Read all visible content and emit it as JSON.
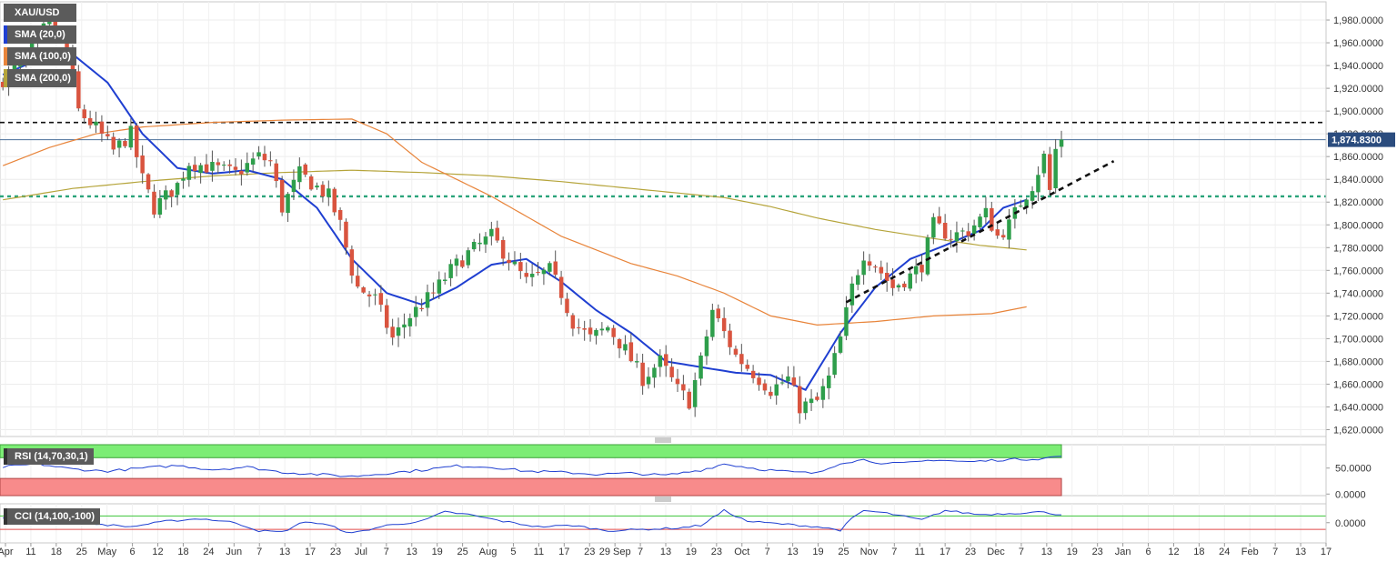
{
  "chart_data": {
    "type": "candlestick",
    "symbol": "XAU/USD",
    "legend": [
      {
        "label": "XAU/USD",
        "color": "#5b5b5b"
      },
      {
        "label": "SMA (20,0)",
        "color": "#1f3fd1"
      },
      {
        "label": "SMA (100,0)",
        "color": "#e8843a"
      },
      {
        "label": "SMA (200,0)",
        "color": "#b5a43a"
      }
    ],
    "last_price": "1,874.8300",
    "ylim": [
      1614,
      1996
    ],
    "y_ticks": [
      "1,620.0000",
      "1,640.0000",
      "1,660.0000",
      "1,680.0000",
      "1,700.0000",
      "1,720.0000",
      "1,740.0000",
      "1,760.0000",
      "1,780.0000",
      "1,800.0000",
      "1,820.0000",
      "1,840.0000",
      "1,860.0000",
      "1,880.0000",
      "1,900.0000",
      "1,920.0000",
      "1,940.0000",
      "1,960.0000",
      "1,980.0000"
    ],
    "y_tick_values": [
      1620,
      1640,
      1660,
      1680,
      1700,
      1720,
      1740,
      1760,
      1780,
      1800,
      1820,
      1840,
      1860,
      1880,
      1900,
      1920,
      1940,
      1960,
      1980
    ],
    "x_labels": [
      "Apr",
      "11",
      "18",
      "25",
      "May",
      "6",
      "12",
      "18",
      "24",
      "Jun",
      "7",
      "13",
      "17",
      "23",
      "Jul",
      "7",
      "13",
      "19",
      "25",
      "Aug",
      "5",
      "11",
      "17",
      "23",
      "29 Sep",
      "7",
      "13",
      "19",
      "23",
      "Oct",
      "7",
      "13",
      "19",
      "25",
      "Nov",
      "7",
      "11",
      "17",
      "23",
      "Dec",
      "7",
      "13",
      "19",
      "23",
      "Jan",
      "6",
      "12",
      "18",
      "24",
      "Feb",
      "7",
      "13",
      "17"
    ],
    "resistance_level": 1890,
    "support_level": 1825,
    "trendline": {
      "from_index": 145,
      "from_price": 1732,
      "to_index": 191,
      "to_price": 1856
    },
    "sma20_anchors": [
      [
        0,
        1932
      ],
      [
        6,
        1945
      ],
      [
        12,
        1950
      ],
      [
        18,
        1925
      ],
      [
        24,
        1880
      ],
      [
        30,
        1850
      ],
      [
        36,
        1845
      ],
      [
        42,
        1848
      ],
      [
        48,
        1840
      ],
      [
        54,
        1815
      ],
      [
        60,
        1770
      ],
      [
        66,
        1740
      ],
      [
        72,
        1730
      ],
      [
        78,
        1745
      ],
      [
        84,
        1765
      ],
      [
        90,
        1770
      ],
      [
        96,
        1750
      ],
      [
        102,
        1725
      ],
      [
        108,
        1705
      ],
      [
        114,
        1680
      ],
      [
        120,
        1675
      ],
      [
        126,
        1670
      ],
      [
        132,
        1668
      ],
      [
        138,
        1655
      ],
      [
        144,
        1705
      ],
      [
        150,
        1745
      ],
      [
        156,
        1770
      ],
      [
        162,
        1782
      ],
      [
        168,
        1795
      ],
      [
        172,
        1815
      ],
      [
        176,
        1822
      ]
    ],
    "sma100_anchors": [
      [
        0,
        1852
      ],
      [
        8,
        1868
      ],
      [
        16,
        1880
      ],
      [
        24,
        1886
      ],
      [
        36,
        1890
      ],
      [
        48,
        1892
      ],
      [
        60,
        1893
      ],
      [
        66,
        1880
      ],
      [
        72,
        1855
      ],
      [
        84,
        1825
      ],
      [
        96,
        1790
      ],
      [
        108,
        1766
      ],
      [
        116,
        1755
      ],
      [
        124,
        1740
      ],
      [
        132,
        1720
      ],
      [
        140,
        1712
      ],
      [
        150,
        1715
      ],
      [
        160,
        1720
      ],
      [
        170,
        1722
      ],
      [
        176,
        1728
      ]
    ],
    "sma200_anchors": [
      [
        0,
        1822
      ],
      [
        12,
        1832
      ],
      [
        24,
        1838
      ],
      [
        36,
        1843
      ],
      [
        48,
        1846
      ],
      [
        60,
        1848
      ],
      [
        72,
        1846
      ],
      [
        84,
        1843
      ],
      [
        96,
        1838
      ],
      [
        108,
        1832
      ],
      [
        118,
        1827
      ],
      [
        124,
        1824
      ],
      [
        132,
        1816
      ],
      [
        140,
        1806
      ],
      [
        150,
        1796
      ],
      [
        160,
        1788
      ],
      [
        168,
        1782
      ],
      [
        176,
        1778
      ]
    ],
    "close_path": [
      [
        0,
        1928
      ],
      [
        4,
        1945
      ],
      [
        8,
        1980
      ],
      [
        11,
        1955
      ],
      [
        13,
        1900
      ],
      [
        16,
        1885
      ],
      [
        19,
        1865
      ],
      [
        22,
        1880
      ],
      [
        24,
        1840
      ],
      [
        26,
        1815
      ],
      [
        30,
        1835
      ],
      [
        32,
        1855
      ],
      [
        36,
        1850
      ],
      [
        40,
        1845
      ],
      [
        44,
        1860
      ],
      [
        46,
        1855
      ],
      [
        48,
        1815
      ],
      [
        51,
        1845
      ],
      [
        56,
        1825
      ],
      [
        58,
        1800
      ],
      [
        60,
        1760
      ],
      [
        61,
        1745
      ],
      [
        64,
        1735
      ],
      [
        67,
        1700
      ],
      [
        70,
        1720
      ],
      [
        74,
        1740
      ],
      [
        77,
        1760
      ],
      [
        80,
        1775
      ],
      [
        84,
        1790
      ],
      [
        87,
        1770
      ],
      [
        90,
        1750
      ],
      [
        94,
        1760
      ],
      [
        96,
        1740
      ],
      [
        98,
        1715
      ],
      [
        101,
        1700
      ],
      [
        104,
        1710
      ],
      [
        107,
        1690
      ],
      [
        110,
        1665
      ],
      [
        113,
        1680
      ],
      [
        116,
        1655
      ],
      [
        118,
        1645
      ],
      [
        120,
        1680
      ],
      [
        122,
        1725
      ],
      [
        124,
        1705
      ],
      [
        126,
        1685
      ],
      [
        129,
        1670
      ],
      [
        132,
        1655
      ],
      [
        135,
        1665
      ],
      [
        137,
        1640
      ],
      [
        140,
        1645
      ],
      [
        142,
        1665
      ],
      [
        144,
        1700
      ],
      [
        146,
        1745
      ],
      [
        148,
        1775
      ],
      [
        150,
        1765
      ],
      [
        153,
        1745
      ],
      [
        156,
        1755
      ],
      [
        158,
        1765
      ],
      [
        160,
        1800
      ],
      [
        163,
        1790
      ],
      [
        166,
        1795
      ],
      [
        169,
        1810
      ],
      [
        171,
        1790
      ],
      [
        173,
        1800
      ],
      [
        175,
        1820
      ],
      [
        177,
        1835
      ],
      [
        179,
        1860
      ],
      [
        180,
        1830
      ],
      [
        181,
        1866
      ],
      [
        182,
        1875
      ]
    ],
    "rsi": {
      "label": "RSI (14,70,30,1)",
      "ylim": [
        -3,
        95
      ],
      "overbought": 70,
      "oversold": 30,
      "tick_labels": [
        "50.0000",
        "0.0000"
      ],
      "tick_values": [
        50,
        0
      ],
      "anchors": [
        [
          0,
          52
        ],
        [
          6,
          58
        ],
        [
          12,
          48
        ],
        [
          18,
          44
        ],
        [
          24,
          50
        ],
        [
          30,
          55
        ],
        [
          36,
          47
        ],
        [
          42,
          52
        ],
        [
          48,
          42
        ],
        [
          54,
          38
        ],
        [
          60,
          34
        ],
        [
          66,
          40
        ],
        [
          72,
          46
        ],
        [
          78,
          54
        ],
        [
          84,
          52
        ],
        [
          90,
          44
        ],
        [
          96,
          42
        ],
        [
          102,
          38
        ],
        [
          108,
          40
        ],
        [
          114,
          36
        ],
        [
          120,
          46
        ],
        [
          124,
          58
        ],
        [
          130,
          48
        ],
        [
          136,
          42
        ],
        [
          140,
          40
        ],
        [
          144,
          60
        ],
        [
          148,
          66
        ],
        [
          152,
          58
        ],
        [
          156,
          60
        ],
        [
          160,
          66
        ],
        [
          166,
          62
        ],
        [
          172,
          66
        ],
        [
          178,
          68
        ],
        [
          182,
          73
        ]
      ]
    },
    "cci": {
      "label": "CCI (14,100,-100)",
      "ylim": [
        -300,
        280
      ],
      "upper": 100,
      "lower": -100,
      "tick_labels": [
        "0.0000"
      ],
      "tick_values": [
        0
      ],
      "anchors": [
        [
          0,
          60
        ],
        [
          5,
          160
        ],
        [
          10,
          40
        ],
        [
          16,
          -20
        ],
        [
          22,
          -60
        ],
        [
          28,
          20
        ],
        [
          34,
          60
        ],
        [
          40,
          0
        ],
        [
          44,
          -120
        ],
        [
          48,
          -140
        ],
        [
          52,
          20
        ],
        [
          56,
          -40
        ],
        [
          60,
          -160
        ],
        [
          66,
          -40
        ],
        [
          72,
          20
        ],
        [
          76,
          160
        ],
        [
          80,
          120
        ],
        [
          86,
          20
        ],
        [
          92,
          -60
        ],
        [
          98,
          -40
        ],
        [
          104,
          -120
        ],
        [
          110,
          -100
        ],
        [
          116,
          -80
        ],
        [
          120,
          -40
        ],
        [
          124,
          180
        ],
        [
          128,
          20
        ],
        [
          134,
          -20
        ],
        [
          140,
          -60
        ],
        [
          144,
          -110
        ],
        [
          146,
          60
        ],
        [
          148,
          180
        ],
        [
          152,
          140
        ],
        [
          158,
          40
        ],
        [
          162,
          180
        ],
        [
          168,
          120
        ],
        [
          174,
          140
        ],
        [
          178,
          160
        ],
        [
          182,
          120
        ]
      ]
    }
  }
}
